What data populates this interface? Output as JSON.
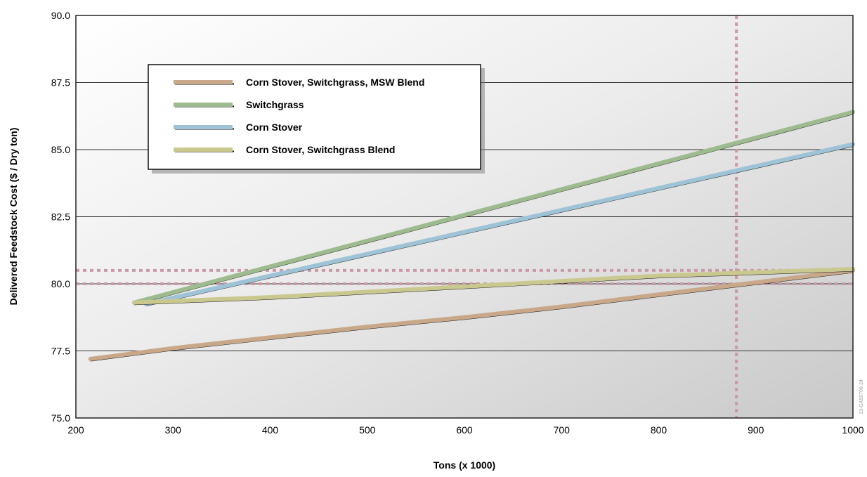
{
  "chart_data": {
    "type": "line",
    "xlabel": "Tons (x 1000)",
    "ylabel": "Delivered Feedstock Cost ($ / Dry ton)",
    "xlim": [
      200,
      1000
    ],
    "ylim": [
      75.0,
      90.0
    ],
    "x_ticks": [
      "200",
      "300",
      "400",
      "500",
      "600",
      "700",
      "800",
      "900",
      "1000"
    ],
    "y_ticks": [
      "75.0",
      "77.5",
      "80.0",
      "82.5",
      "85.0",
      "87.5",
      "90.0"
    ],
    "grid": "horizontal",
    "legend_position": "top-left",
    "series": [
      {
        "name": "Corn Stover, Switchgrass, MSW Blend",
        "color": "#c9a88a",
        "points": [
          [
            215,
            77.2
          ],
          [
            300,
            77.6
          ],
          [
            400,
            78.0
          ],
          [
            500,
            78.4
          ],
          [
            600,
            78.75
          ],
          [
            700,
            79.15
          ],
          [
            800,
            79.6
          ],
          [
            900,
            80.05
          ],
          [
            1000,
            80.5
          ]
        ]
      },
      {
        "name": "Switchgrass",
        "color": "#9dbb8e",
        "points": [
          [
            260,
            79.3
          ],
          [
            1000,
            86.4
          ]
        ]
      },
      {
        "name": "Corn Stover",
        "color": "#9ec3d6",
        "points": [
          [
            272,
            79.25
          ],
          [
            1000,
            85.2
          ]
        ]
      },
      {
        "name": "Corn Stover, Switchgrass Blend",
        "color": "#c9c98f",
        "points": [
          [
            260,
            79.3
          ],
          [
            400,
            79.5
          ],
          [
            600,
            79.9
          ],
          [
            800,
            80.3
          ],
          [
            1000,
            80.55
          ]
        ]
      }
    ],
    "reference_lines": [
      {
        "orientation": "vertical",
        "value": 880,
        "color": "#c99aa5"
      },
      {
        "orientation": "horizontal",
        "value": 80.0,
        "color": "#c99aa5"
      },
      {
        "orientation": "horizontal",
        "value": 80.5,
        "color": "#c99aa5"
      }
    ],
    "side_label": "13-GA50709-24"
  }
}
